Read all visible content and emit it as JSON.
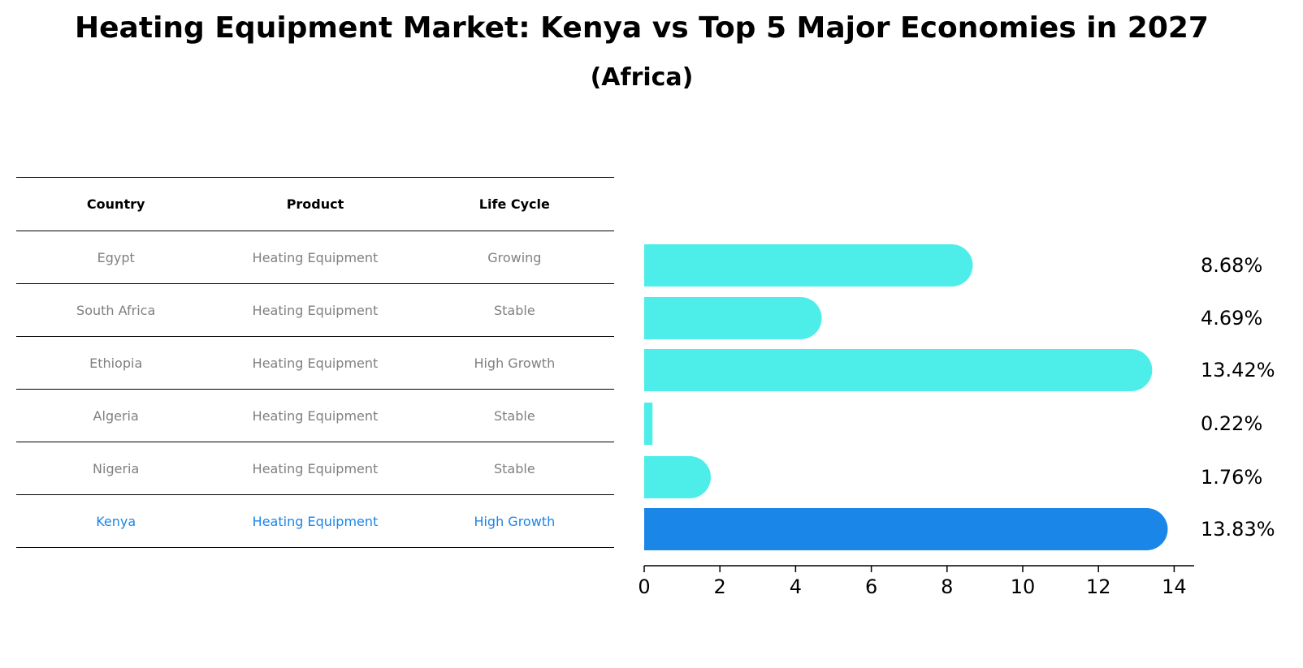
{
  "title": "Heating Equipment Market: Kenya vs Top 5 Major Economies in 2027",
  "subtitle": "(Africa)",
  "table": {
    "headers": [
      "Country",
      "Product",
      "Life Cycle"
    ],
    "rows": [
      {
        "country": "Egypt",
        "product": "Heating Equipment",
        "life_cycle": "Growing"
      },
      {
        "country": "South Africa",
        "product": "Heating Equipment",
        "life_cycle": "Stable"
      },
      {
        "country": "Ethiopia",
        "product": "Heating Equipment",
        "life_cycle": "High Growth"
      },
      {
        "country": "Algeria",
        "product": "Heating Equipment",
        "life_cycle": "Stable"
      },
      {
        "country": "Nigeria",
        "product": "Heating Equipment",
        "life_cycle": "Stable"
      },
      {
        "country": "Kenya",
        "product": "Heating Equipment",
        "life_cycle": "High Growth"
      }
    ],
    "highlight_row": 5,
    "highlight_color": "#1a86e8"
  },
  "chart_data": {
    "type": "bar",
    "orientation": "horizontal",
    "categories": [
      "Egypt",
      "South Africa",
      "Ethiopia",
      "Algeria",
      "Nigeria",
      "Kenya"
    ],
    "values": [
      8.68,
      4.69,
      13.42,
      0.22,
      1.76,
      13.83
    ],
    "value_labels": [
      "8.68%",
      "4.69%",
      "13.42%",
      "0.22%",
      "1.76%",
      "13.83%"
    ],
    "xlim": [
      0,
      14.5
    ],
    "xticks": [
      0,
      2,
      4,
      6,
      8,
      10,
      12,
      14
    ],
    "grid": false,
    "bar_color": "#4deeea",
    "highlight_color": "#1a86e8",
    "highlight_index": 5
  }
}
